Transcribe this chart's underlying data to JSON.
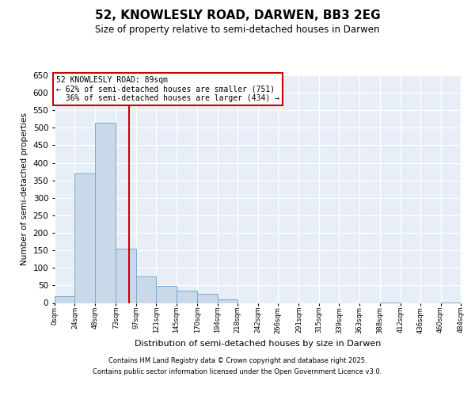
{
  "title": "52, KNOWLESLY ROAD, DARWEN, BB3 2EG",
  "subtitle": "Size of property relative to semi-detached houses in Darwen",
  "xlabel": "Distribution of semi-detached houses by size in Darwen",
  "ylabel": "Number of semi-detached properties",
  "property_size": 89,
  "property_label": "52 KNOWLESLY ROAD: 89sqm",
  "pct_smaller": 62,
  "n_smaller": 751,
  "pct_larger": 36,
  "n_larger": 434,
  "bar_color": "#c9d9ea",
  "bar_edge_color": "#7aaacf",
  "vline_color": "#cc0000",
  "annotation_box_edgecolor": "#cc0000",
  "bg_color": "#e8eef8",
  "grid_color": "#ffffff",
  "bin_edges": [
    0,
    24,
    48,
    73,
    97,
    121,
    145,
    170,
    194,
    218,
    242,
    266,
    291,
    315,
    339,
    363,
    388,
    412,
    436,
    460,
    484
  ],
  "bin_labels": [
    "0sqm",
    "24sqm",
    "48sqm",
    "73sqm",
    "97sqm",
    "121sqm",
    "145sqm",
    "170sqm",
    "194sqm",
    "218sqm",
    "242sqm",
    "266sqm",
    "291sqm",
    "315sqm",
    "339sqm",
    "363sqm",
    "388sqm",
    "412sqm",
    "436sqm",
    "460sqm",
    "484sqm"
  ],
  "counts": [
    20,
    370,
    515,
    155,
    75,
    48,
    35,
    25,
    10,
    0,
    0,
    0,
    0,
    0,
    0,
    0,
    1,
    0,
    0,
    1
  ],
  "ylim": [
    0,
    650
  ],
  "yticks": [
    0,
    50,
    100,
    150,
    200,
    250,
    300,
    350,
    400,
    450,
    500,
    550,
    600,
    650
  ],
  "footer_line1": "Contains HM Land Registry data © Crown copyright and database right 2025.",
  "footer_line2": "Contains public sector information licensed under the Open Government Licence v3.0."
}
